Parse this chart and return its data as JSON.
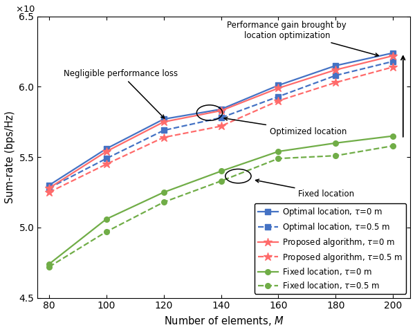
{
  "x": [
    80,
    100,
    120,
    140,
    160,
    180,
    200
  ],
  "optimal_solid": [
    5.3,
    5.56,
    5.77,
    5.84,
    6.01,
    6.15,
    6.24
  ],
  "optimal_dashed": [
    5.28,
    5.49,
    5.69,
    5.78,
    5.93,
    6.08,
    6.18
  ],
  "proposed_solid": [
    5.28,
    5.54,
    5.75,
    5.83,
    5.99,
    6.12,
    6.22
  ],
  "proposed_dashed": [
    5.25,
    5.45,
    5.64,
    5.72,
    5.9,
    6.03,
    6.14
  ],
  "fixed_solid": [
    4.74,
    5.06,
    5.25,
    5.4,
    5.54,
    5.6,
    5.65
  ],
  "fixed_dashed": [
    4.72,
    4.97,
    5.18,
    5.33,
    5.49,
    5.51,
    5.58
  ],
  "color_blue": "#4472C4",
  "color_red": "#FF6B6B",
  "color_green": "#70AD47",
  "xlabel": "Number of elements, $M$",
  "ylabel": "Sum-rate (bps/Hz)",
  "ylim": [
    4.5,
    6.5
  ],
  "xlim": [
    76,
    206
  ],
  "xticks": [
    80,
    100,
    120,
    140,
    160,
    180,
    200
  ],
  "yticks": [
    4.5,
    5.0,
    5.5,
    6.0,
    6.5
  ],
  "legend_labels": [
    "Optimal location, $\\tau$=0 m",
    "Optimal location, $\\tau$=0.5 m",
    "Proposed algorithm, $\\tau$=0 m",
    "Proposed algorithm, $\\tau$=0.5 m",
    "Fixed location, $\\tau$=0 m",
    "Fixed location, $\\tau$=0.5 m"
  ]
}
